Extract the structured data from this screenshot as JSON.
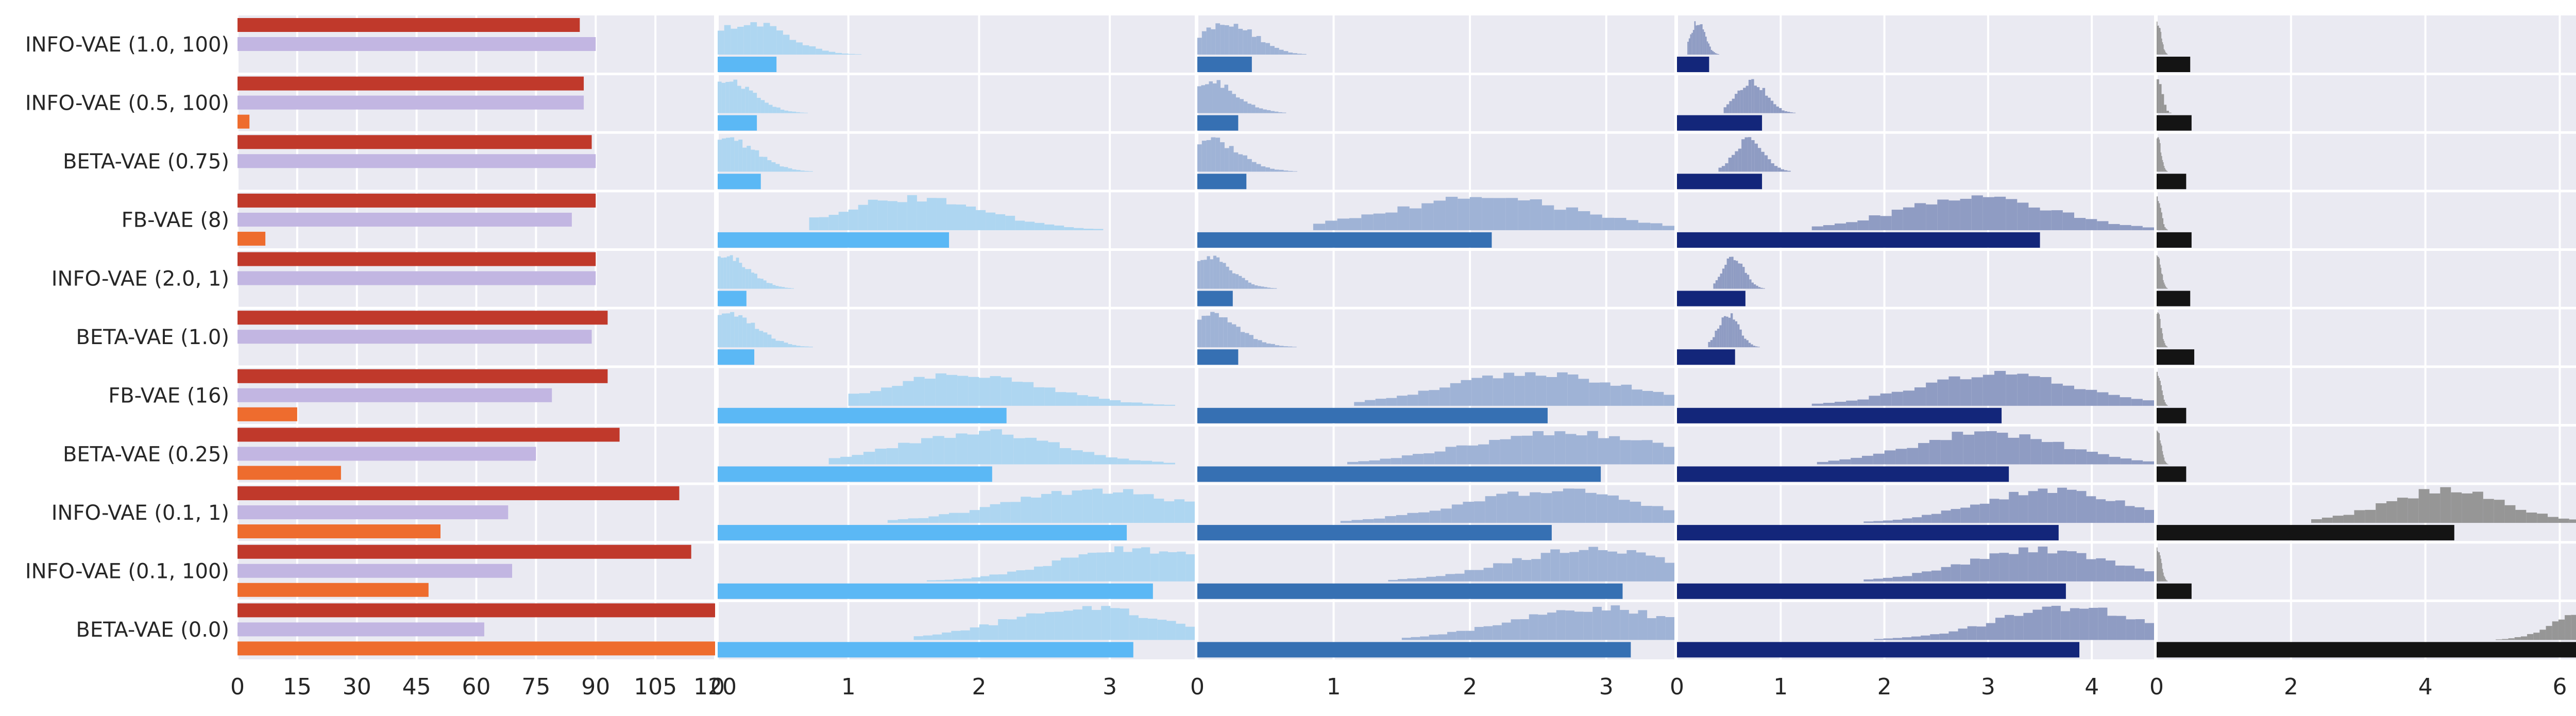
{
  "chart_data": {
    "type": "bar",
    "rows": [
      "INFO-VAE (1.0, 100)",
      "INFO-VAE (0.5, 100)",
      "BETA-VAE (0.75)",
      "FB-VAE (8)",
      "INFO-VAE (2.0, 1)",
      "BETA-VAE (1.0)",
      "FB-VAE (16)",
      "BETA-VAE (0.25)",
      "INFO-VAE (0.1, 1)",
      "INFO-VAE (0.1, 100)",
      "BETA-VAE (0.0)"
    ],
    "colors": {
      "panel_bg": "#eaeaf2",
      "grid": "#ffffff",
      "red": "#c0392b",
      "lavender": "#c2b6e2",
      "orange": "#ee6c2e",
      "p2_bar": "#5bb8f5",
      "p2_hist": "#aed6f1",
      "p3_bar": "#3670b3",
      "p3_hist": "#9fb3d6",
      "p4_bar": "#13267a",
      "p4_hist": "#8f9cc3",
      "p5_bar": "#141414",
      "p5_hist": "#969696"
    },
    "panels": [
      {
        "id": "p1",
        "xlim": [
          0,
          120
        ],
        "ticks": [
          0,
          15,
          30,
          45,
          60,
          75,
          90,
          105,
          120
        ],
        "tick_labels": [
          "0",
          "15",
          "30",
          "45",
          "60",
          "75",
          "90",
          "105",
          "120"
        ],
        "series": [
          {
            "color_key": "red",
            "values": [
              86,
              87,
              89,
              90,
              90,
              93,
              93,
              96,
              111,
              114,
              121
            ]
          },
          {
            "color_key": "lavender",
            "values": [
              90,
              87,
              90,
              84,
              90,
              89,
              79,
              75,
              68,
              69,
              62
            ]
          },
          {
            "color_key": "orange",
            "values": [
              0,
              3,
              0,
              7,
              0,
              0,
              15,
              26,
              51,
              48,
              121
            ]
          }
        ]
      },
      {
        "id": "p2",
        "xlim": [
          0,
          3.65
        ],
        "ticks": [
          0,
          1,
          2,
          3
        ],
        "tick_labels": [
          "0",
          "1",
          "2",
          "3"
        ],
        "bar_color_key": "p2_bar",
        "hist_color_key": "p2_hist",
        "means": [
          0.45,
          0.3,
          0.33,
          1.77,
          0.22,
          0.28,
          2.21,
          2.1,
          3.13,
          3.33,
          3.18
        ],
        "hists": [
          {
            "lo": 0.0,
            "hi": 1.5,
            "peak": 0.25,
            "w": 0.28
          },
          {
            "lo": 0.0,
            "hi": 0.9,
            "peak": 0.08,
            "w": 0.2
          },
          {
            "lo": 0.0,
            "hi": 0.95,
            "peak": 0.08,
            "w": 0.22
          },
          {
            "lo": 0.7,
            "hi": 2.95,
            "peak": 1.5,
            "w": 0.55
          },
          {
            "lo": 0.0,
            "hi": 0.7,
            "peak": 0.06,
            "w": 0.18
          },
          {
            "lo": 0.0,
            "hi": 0.95,
            "peak": 0.08,
            "w": 0.22
          },
          {
            "lo": 1.0,
            "hi": 3.5,
            "peak": 1.9,
            "w": 0.6
          },
          {
            "lo": 0.85,
            "hi": 3.5,
            "peak": 2.0,
            "w": 0.6
          },
          {
            "lo": 1.3,
            "hi": 3.65,
            "peak": 2.9,
            "w": 0.7
          },
          {
            "lo": 1.6,
            "hi": 3.65,
            "peak": 3.2,
            "w": 0.6
          },
          {
            "lo": 1.5,
            "hi": 3.65,
            "peak": 2.8,
            "w": 0.6
          }
        ]
      },
      {
        "id": "p3",
        "xlim": [
          0,
          3.5
        ],
        "ticks": [
          0,
          1,
          2,
          3
        ],
        "tick_labels": [
          "0",
          "1",
          "2",
          "3"
        ],
        "bar_color_key": "p3_bar",
        "hist_color_key": "p3_hist",
        "means": [
          0.4,
          0.3,
          0.36,
          2.16,
          0.26,
          0.3,
          2.57,
          2.96,
          2.6,
          3.12,
          3.18
        ],
        "hists": [
          {
            "lo": 0.0,
            "hi": 1.0,
            "peak": 0.22,
            "w": 0.2
          },
          {
            "lo": 0.0,
            "hi": 0.85,
            "peak": 0.08,
            "w": 0.2
          },
          {
            "lo": 0.0,
            "hi": 1.0,
            "peak": 0.08,
            "w": 0.22
          },
          {
            "lo": 0.85,
            "hi": 3.5,
            "peak": 2.1,
            "w": 0.7
          },
          {
            "lo": 0.0,
            "hi": 0.7,
            "peak": 0.06,
            "w": 0.18
          },
          {
            "lo": 0.0,
            "hi": 0.95,
            "peak": 0.08,
            "w": 0.22
          },
          {
            "lo": 1.15,
            "hi": 3.5,
            "peak": 2.5,
            "w": 0.65
          },
          {
            "lo": 1.1,
            "hi": 3.5,
            "peak": 2.7,
            "w": 0.7
          },
          {
            "lo": 1.05,
            "hi": 3.5,
            "peak": 2.6,
            "w": 0.65
          },
          {
            "lo": 1.4,
            "hi": 3.5,
            "peak": 2.9,
            "w": 0.6
          },
          {
            "lo": 1.5,
            "hi": 3.5,
            "peak": 2.9,
            "w": 0.6
          }
        ]
      },
      {
        "id": "p4",
        "xlim": [
          0,
          4.6
        ],
        "ticks": [
          0,
          1,
          2,
          3,
          4
        ],
        "tick_labels": [
          "0",
          "1",
          "2",
          "3",
          "4"
        ],
        "bar_color_key": "p4_bar",
        "hist_color_key": "p4_hist",
        "means": [
          0.31,
          0.82,
          0.82,
          3.5,
          0.66,
          0.56,
          3.13,
          3.2,
          3.68,
          3.75,
          3.88
        ],
        "hists": [
          {
            "lo": 0.1,
            "hi": 0.5,
            "peak": 0.2,
            "w": 0.07
          },
          {
            "lo": 0.45,
            "hi": 1.25,
            "peak": 0.72,
            "w": 0.14
          },
          {
            "lo": 0.4,
            "hi": 1.35,
            "peak": 0.7,
            "w": 0.14
          },
          {
            "lo": 1.3,
            "hi": 4.6,
            "peak": 2.9,
            "w": 0.75
          },
          {
            "lo": 0.35,
            "hi": 1.0,
            "peak": 0.55,
            "w": 0.1
          },
          {
            "lo": 0.3,
            "hi": 0.95,
            "peak": 0.5,
            "w": 0.1
          },
          {
            "lo": 1.3,
            "hi": 4.6,
            "peak": 3.1,
            "w": 0.75
          },
          {
            "lo": 1.35,
            "hi": 4.6,
            "peak": 3.0,
            "w": 0.7
          },
          {
            "lo": 1.8,
            "hi": 4.6,
            "peak": 3.6,
            "w": 0.7
          },
          {
            "lo": 1.8,
            "hi": 4.6,
            "peak": 3.5,
            "w": 0.7
          },
          {
            "lo": 1.9,
            "hi": 4.6,
            "peak": 3.8,
            "w": 0.7
          }
        ]
      },
      {
        "id": "p5",
        "xlim": [
          0,
          7.1
        ],
        "ticks": [
          0,
          2,
          4,
          6
        ],
        "tick_labels": [
          "0",
          "2",
          "4",
          "6"
        ],
        "bar_color_key": "p5_bar",
        "hist_color_key": "p5_hist",
        "means": [
          0.5,
          0.52,
          0.44,
          0.52,
          0.5,
          0.56,
          0.44,
          0.44,
          4.43,
          0.52,
          6.5
        ],
        "hists": [
          {
            "lo": 0.0,
            "hi": 0.35,
            "peak": 0.02,
            "w": 0.05
          },
          {
            "lo": 0.0,
            "hi": 1.1,
            "peak": 0.03,
            "w": 0.06
          },
          {
            "lo": 0.0,
            "hi": 0.35,
            "peak": 0.02,
            "w": 0.05
          },
          {
            "lo": 0.0,
            "hi": 0.5,
            "peak": 0.02,
            "w": 0.05
          },
          {
            "lo": 0.0,
            "hi": 0.35,
            "peak": 0.02,
            "w": 0.05
          },
          {
            "lo": 0.0,
            "hi": 0.35,
            "peak": 0.02,
            "w": 0.05
          },
          {
            "lo": 0.0,
            "hi": 0.45,
            "peak": 0.02,
            "w": 0.05
          },
          {
            "lo": 0.0,
            "hi": 0.35,
            "peak": 0.02,
            "w": 0.05
          },
          {
            "lo": 2.3,
            "hi": 7.1,
            "peak": 4.3,
            "w": 0.9
          },
          {
            "lo": 0.0,
            "hi": 0.35,
            "peak": 0.02,
            "w": 0.05
          },
          {
            "lo": 4.3,
            "hi": 7.1,
            "peak": 6.5,
            "w": 0.5
          }
        ]
      }
    ]
  }
}
